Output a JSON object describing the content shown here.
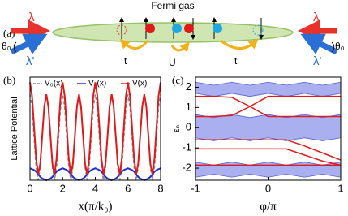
{
  "panel_a": {
    "label": "(a)",
    "title": "Fermi gas",
    "beams": [
      {
        "label": "λ",
        "color": "#e8312a"
      },
      {
        "label": "λ",
        "color": "#e8312a"
      },
      {
        "label": "λ'",
        "color": "#2a6fd6"
      },
      {
        "label": "λ'",
        "color": "#2a6fd6"
      }
    ],
    "angles": [
      "θ₀",
      "θ₀"
    ],
    "hoppings": [
      "t",
      "U",
      "t"
    ]
  },
  "chart_data": [
    {
      "type": "line",
      "label": "(b)",
      "y_label": "Lattice Potential",
      "x_label": "x(π/k₀)",
      "x": [
        0,
        0.125,
        0.25,
        0.375,
        0.5,
        0.625,
        0.75,
        0.875,
        1,
        1.125,
        1.25,
        1.375,
        1.5,
        1.625,
        1.75,
        1.875,
        2,
        2.125,
        2.25,
        2.375,
        2.5,
        2.625,
        2.75,
        2.875,
        3,
        3.125,
        3.25,
        3.375,
        3.5,
        3.625,
        3.75,
        3.875,
        4,
        4.125,
        4.25,
        4.375,
        4.5,
        4.625,
        4.75,
        4.875,
        5,
        5.125,
        5.25,
        5.375,
        5.5,
        5.625,
        5.75,
        5.875,
        6,
        6.125,
        6.25,
        6.375,
        6.5,
        6.625,
        6.75,
        6.875,
        7,
        7.125,
        7.25,
        7.375,
        7.5,
        7.625,
        7.75,
        7.875,
        8
      ],
      "xlim": [
        0,
        8
      ],
      "xticks": [
        0,
        2,
        4,
        6,
        8
      ],
      "ylim": [
        0,
        1.2
      ],
      "legend": "top",
      "series": [
        {
          "name": "V₀(x)",
          "color": "#888888",
          "dash": true,
          "values": [
            1,
            0.85,
            0.5,
            0.15,
            0,
            0.15,
            0.5,
            0.85,
            1,
            0.85,
            0.5,
            0.15,
            0,
            0.15,
            0.5,
            0.85,
            1,
            0.85,
            0.5,
            0.15,
            0,
            0.15,
            0.5,
            0.85,
            1,
            0.85,
            0.5,
            0.15,
            0,
            0.15,
            0.5,
            0.85,
            1,
            0.85,
            0.5,
            0.15,
            0,
            0.15,
            0.5,
            0.85,
            1,
            0.85,
            0.5,
            0.15,
            0,
            0.15,
            0.5,
            0.85,
            1,
            0.85,
            0.5,
            0.15,
            0,
            0.15,
            0.5,
            0.85,
            1,
            0.85,
            0.5,
            0.15,
            0,
            0.15,
            0.5,
            0.85,
            1
          ]
        },
        {
          "name": "V₂(x)",
          "color": "#1f2fd0",
          "values": [
            0.14,
            0.13,
            0.12,
            0.1,
            0.07,
            0.04,
            0.02,
            0.01,
            0,
            0.01,
            0.02,
            0.04,
            0.07,
            0.1,
            0.12,
            0.13,
            0.14,
            0.13,
            0.12,
            0.1,
            0.07,
            0.04,
            0.02,
            0.01,
            0,
            0.01,
            0.02,
            0.04,
            0.07,
            0.1,
            0.12,
            0.13,
            0.14,
            0.13,
            0.12,
            0.1,
            0.07,
            0.04,
            0.02,
            0.01,
            0,
            0.01,
            0.02,
            0.04,
            0.07,
            0.1,
            0.12,
            0.13,
            0.14,
            0.13,
            0.12,
            0.1,
            0.07,
            0.04,
            0.02,
            0.01,
            0,
            0.01,
            0.02,
            0.04,
            0.07,
            0.1,
            0.12,
            0.13,
            0.14
          ]
        },
        {
          "name": "V(x)",
          "color": "#e01a1a",
          "values": [
            1.14,
            0.98,
            0.62,
            0.25,
            0.07,
            0.19,
            0.52,
            0.86,
            1,
            0.86,
            0.52,
            0.19,
            0.07,
            0.25,
            0.62,
            0.98,
            1.14,
            0.98,
            0.62,
            0.25,
            0.07,
            0.19,
            0.52,
            0.86,
            1,
            0.86,
            0.52,
            0.19,
            0.07,
            0.25,
            0.62,
            0.98,
            1.14,
            0.98,
            0.62,
            0.25,
            0.07,
            0.19,
            0.52,
            0.86,
            1,
            0.86,
            0.52,
            0.19,
            0.07,
            0.25,
            0.62,
            0.98,
            1.14,
            0.98,
            0.62,
            0.25,
            0.07,
            0.19,
            0.52,
            0.86,
            1,
            0.86,
            0.52,
            0.19,
            0.07,
            0.25,
            0.62,
            0.98,
            1.14
          ]
        }
      ]
    },
    {
      "type": "band",
      "label": "(c)",
      "y_label": "εₙ",
      "x_label": "φ/π",
      "x": [
        -1,
        -0.75,
        -0.5,
        -0.25,
        0,
        0.25,
        0.5,
        0.75,
        1
      ],
      "xlim": [
        -1,
        1
      ],
      "xticks": [
        -1,
        0,
        1
      ],
      "ylim": [
        -2.6,
        2.5
      ],
      "yticks": [
        -2,
        -1,
        0,
        1,
        2
      ],
      "bands": [
        {
          "color": "#8e95ea",
          "lower": [
            1.7,
            1.55,
            1.7,
            1.55,
            1.7,
            1.55,
            1.7,
            1.55,
            1.7
          ],
          "upper": [
            2.25,
            2.1,
            2.25,
            2.1,
            2.25,
            2.1,
            2.25,
            2.1,
            2.25
          ]
        },
        {
          "color": "#8e95ea",
          "lower": [
            -0.5,
            -0.65,
            -0.5,
            -0.65,
            -0.5,
            -0.65,
            -0.5,
            -0.65,
            -0.5
          ],
          "upper": [
            0.65,
            0.5,
            0.65,
            0.5,
            0.65,
            0.5,
            0.65,
            0.5,
            0.65
          ]
        },
        {
          "color": "#8e95ea",
          "lower": [
            -2.45,
            -2.3,
            -2.45,
            -2.3,
            -2.45,
            -2.3,
            -2.45,
            -2.3,
            -2.45
          ],
          "upper": [
            -1.7,
            -1.85,
            -1.7,
            -1.85,
            -1.7,
            -1.85,
            -1.7,
            -1.85,
            -1.7
          ]
        }
      ],
      "series": [
        {
          "color": "#e01a1a",
          "values": [
            1.55,
            1.55,
            1.5,
            1.05,
            0.55,
            0.55,
            0.55,
            0.55,
            0.55
          ]
        },
        {
          "color": "#e01a1a",
          "values": [
            0.55,
            0.55,
            0.6,
            1.05,
            1.55,
            1.55,
            1.55,
            1.55,
            1.55
          ]
        },
        {
          "color": "#e01a1a",
          "values": [
            -1.05,
            -1.05,
            -1.05,
            -1.05,
            -1.05,
            -1.05,
            -1.35,
            -1.65,
            -1.85
          ]
        },
        {
          "color": "#e01a1a",
          "values": [
            -0.6,
            -0.6,
            -0.6,
            -0.6,
            -0.6,
            -0.6,
            -0.9,
            -1.25,
            -1.6
          ]
        },
        {
          "color": "#e01a1a",
          "values": [
            -1.85,
            -1.85,
            -1.85,
            -1.85,
            -1.85,
            -1.85,
            -1.85,
            -1.85,
            -1.85
          ]
        }
      ]
    }
  ]
}
